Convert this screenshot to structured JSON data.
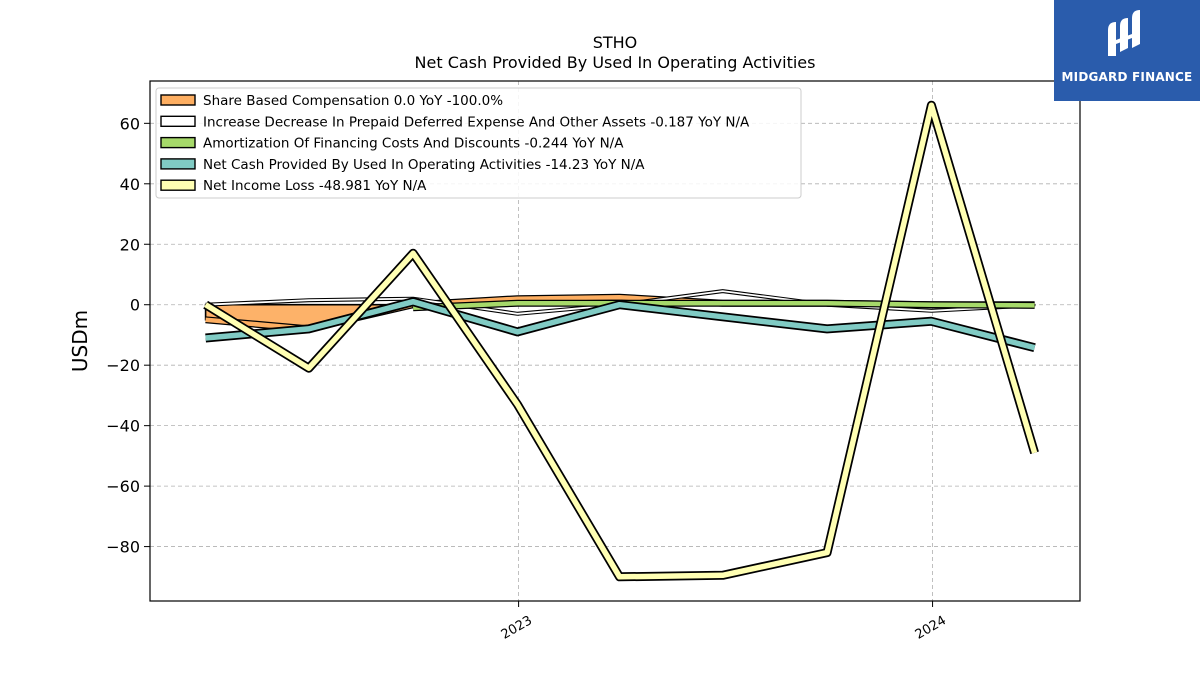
{
  "chart_data": {
    "type": "line",
    "title": "STHO",
    "subtitle": "Net Cash Provided By Used In Operating Activities",
    "ylabel": "USDm",
    "xlabel": "",
    "ylim": [
      -98,
      74
    ],
    "yticks": [
      60,
      40,
      20,
      0,
      -20,
      -40,
      -60,
      -80
    ],
    "ytick_labels": [
      "60",
      "40",
      "20",
      "0",
      "−20",
      "−40",
      "−60",
      "−80"
    ],
    "x_range": [
      "2022-02-10",
      "2024-05-10"
    ],
    "xticks": [
      "2023-01-01",
      "2024-01-01"
    ],
    "xtick_labels": [
      "2023",
      "2024"
    ],
    "grid": true,
    "legend_position": "top-left",
    "x": [
      "2022-03-31",
      "2022-06-30",
      "2022-09-30",
      "2022-12-31",
      "2023-03-31",
      "2023-06-30",
      "2023-09-30",
      "2023-12-31",
      "2024-03-31"
    ],
    "series": [
      {
        "name": "Share Based Compensation",
        "legend_label": "Share Based Compensation  0.0 YoY -100.0%",
        "color": "#fdae61",
        "style": "area",
        "values": [
          -5,
          -8,
          0,
          2,
          2.5,
          0.5,
          0.5,
          0,
          0
        ]
      },
      {
        "name": "Increase Decrease In Prepaid Deferred Expense And Other Assets",
        "legend_label": "Increase Decrease In Prepaid Deferred Expense And Other Assets  -0.187 YoY N/A",
        "color": "#ffffff",
        "style": "thin",
        "values": [
          0,
          1.5,
          2,
          -3,
          0,
          4.5,
          0,
          -2,
          -0.19
        ]
      },
      {
        "name": "Amortization Of Financing Costs And Discounts",
        "legend_label": "Amortization Of Financing Costs And Discounts  -0.244 YoY N/A",
        "color": "#a6d96a",
        "style": "area",
        "start_index": 2,
        "values": [
          null,
          null,
          -1,
          0.5,
          0.5,
          0.5,
          0.5,
          0,
          -0.24
        ]
      },
      {
        "name": "Net Cash Provided By Used In Operating Activities",
        "legend_label": "Net Cash Provided By Used In Operating Activities  -14.23 YoY N/A",
        "color": "#80cbc4",
        "style": "thick",
        "values": [
          -11,
          -8,
          1,
          -9,
          0,
          -4,
          -8,
          -5.5,
          -14.23
        ]
      },
      {
        "name": "Net Income Loss",
        "legend_label": "Net Income Loss  -48.981 YoY N/A",
        "color": "#ffffb3",
        "style": "thick",
        "values": [
          0,
          -21,
          17,
          -33,
          -90,
          -89.5,
          -82,
          66,
          -48.98
        ]
      }
    ]
  },
  "logo": {
    "text": "MIDGARD FINANCE",
    "background": "#2a5cac"
  }
}
